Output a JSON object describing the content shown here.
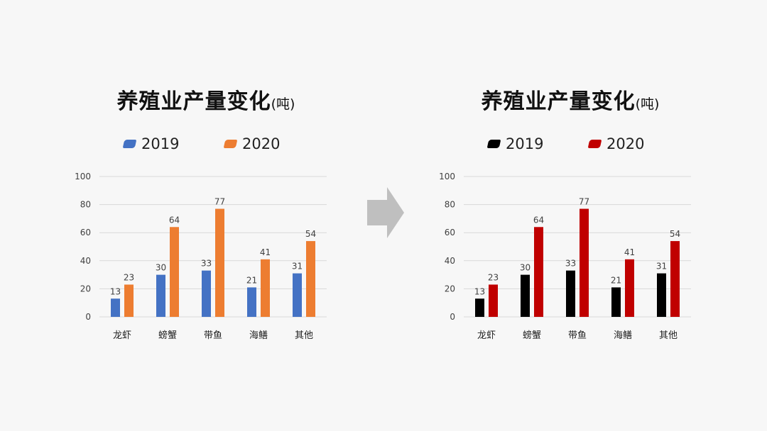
{
  "chart_data": [
    {
      "type": "bar",
      "title": "养殖业产量变化",
      "title_unit": "(吨)",
      "categories": [
        "龙虾",
        "螃蟹",
        "带鱼",
        "海鳝",
        "其他"
      ],
      "series": [
        {
          "name": "2019",
          "values": [
            13,
            30,
            33,
            21,
            31
          ],
          "color": "#4472c4"
        },
        {
          "name": "2020",
          "values": [
            23,
            64,
            77,
            41,
            54
          ],
          "color": "#ed7d31"
        }
      ],
      "ylim": [
        0,
        100
      ],
      "yticks": [
        0,
        20,
        40,
        60,
        80,
        100
      ],
      "grid": true,
      "legend": "top",
      "data_labels": true
    },
    {
      "type": "bar",
      "title": "养殖业产量变化",
      "title_unit": "(吨)",
      "categories": [
        "龙虾",
        "螃蟹",
        "带鱼",
        "海鳝",
        "其他"
      ],
      "series": [
        {
          "name": "2019",
          "values": [
            13,
            30,
            33,
            21,
            31
          ],
          "color": "#000000"
        },
        {
          "name": "2020",
          "values": [
            23,
            64,
            77,
            41,
            54
          ],
          "color": "#c00000"
        }
      ],
      "ylim": [
        0,
        100
      ],
      "yticks": [
        0,
        20,
        40,
        60,
        80,
        100
      ],
      "grid": true,
      "legend": "top",
      "data_labels": true
    }
  ],
  "colors": {
    "background": "#f7f7f7",
    "grid": "#d9d9d9",
    "axis_text": "#404040",
    "arrow": "#bfbfbf"
  },
  "arrow_icon": "right-arrow-icon"
}
